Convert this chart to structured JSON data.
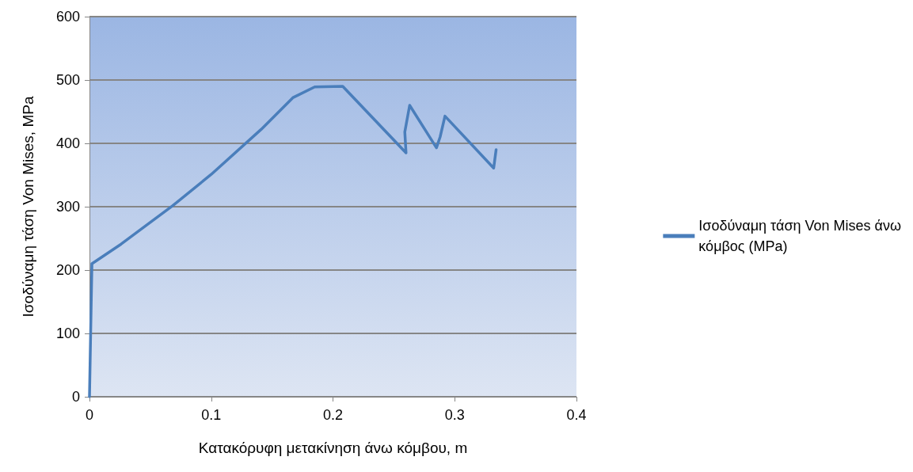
{
  "chart_data": {
    "type": "line",
    "xlabel": "Κατακόρυφη μετακίνηση άνω κόμβου, m",
    "ylabel": "Ισοδύναμη τάση Von Mises, MPa",
    "xlim": [
      0,
      0.4
    ],
    "xticks": [
      0,
      0.1,
      0.2,
      0.3,
      0.4
    ],
    "ylim": [
      0,
      600
    ],
    "yticks": [
      0,
      100,
      200,
      300,
      400,
      500,
      600
    ],
    "grid": "y",
    "legend": "right",
    "marker": "none",
    "line_style": "solid",
    "series": [
      {
        "name": "Ισοδύναμη τάση Von Mises άνω κόμβος (MPa)",
        "color": "#4a7ebb",
        "x": [
          0,
          0.002,
          0.026,
          0.068,
          0.1,
          0.141,
          0.167,
          0.185,
          0.208,
          0.26,
          0.259,
          0.261,
          0.263,
          0.285,
          0.288,
          0.292,
          0.332,
          0.334
        ],
        "values": [
          0,
          210,
          241,
          301,
          351,
          422,
          472,
          489,
          490,
          385,
          418,
          439,
          460,
          393,
          410,
          443,
          361,
          390
        ]
      }
    ]
  }
}
